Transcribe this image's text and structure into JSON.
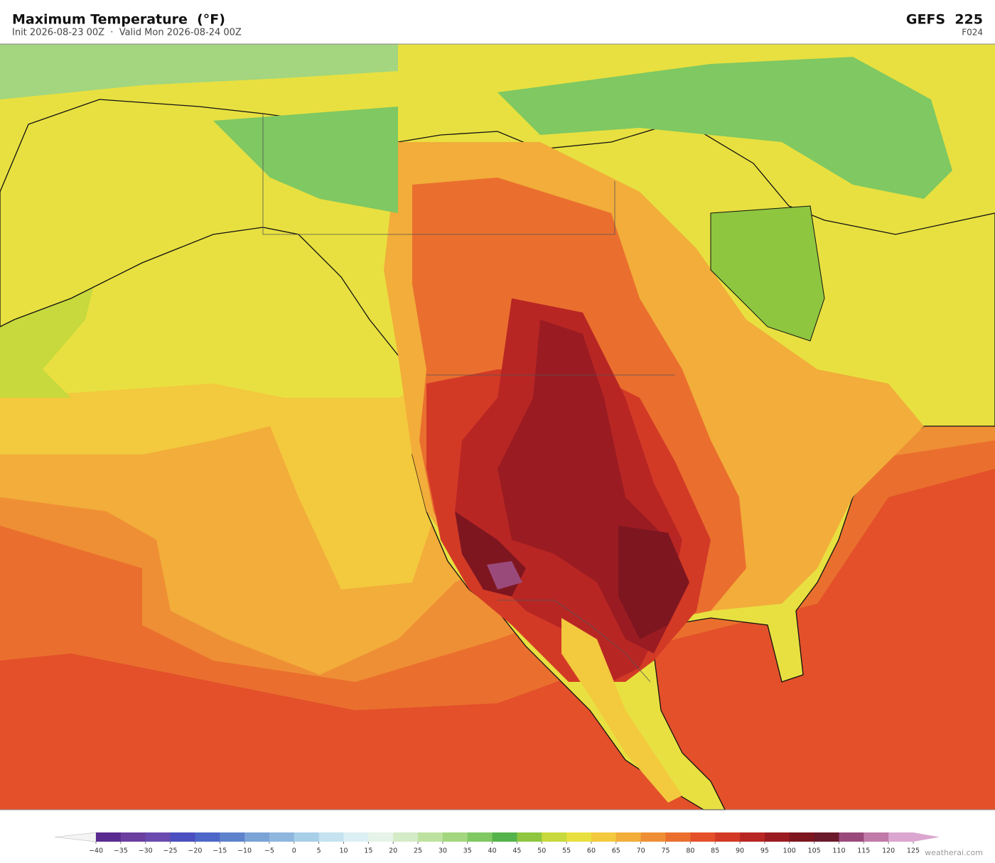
{
  "header": {
    "title": "Maximum Temperature  (°F)",
    "subtitle": "Init 2026-08-23 00Z  ·  Valid Mon 2026-08-24 00Z",
    "model": "GEFS  225",
    "forecast": "F024"
  },
  "colorbar": {
    "ticks": [
      {
        "value": -40,
        "label": "−40"
      },
      {
        "value": -35,
        "label": "−35"
      },
      {
        "value": -30,
        "label": "−30"
      },
      {
        "value": -25,
        "label": "−25"
      },
      {
        "value": -20,
        "label": "−20"
      },
      {
        "value": -15,
        "label": "−15"
      },
      {
        "value": -10,
        "label": "−10"
      },
      {
        "value": -5,
        "label": "−5"
      },
      0,
      5,
      10,
      15,
      20,
      25,
      30,
      35,
      40,
      45,
      50,
      55,
      60,
      65,
      70,
      75,
      80,
      85,
      90,
      95,
      100,
      105,
      110,
      115,
      120,
      125
    ],
    "colors": [
      "#5b2a91",
      "#6b3fa0",
      "#6a4aae",
      "#4b4fbf",
      "#4f66c9",
      "#5f82cc",
      "#7aa3d6",
      "#8fb6de",
      "#a7cfe8",
      "#c4e2ef",
      "#dceff4",
      "#e6f3e8",
      "#d3ebc6",
      "#bde2a0",
      "#a3d67e",
      "#7fc862",
      "#55b34b",
      "#8ec63f",
      "#c7d93c",
      "#e8e040",
      "#f3c93e",
      "#f2ad3a",
      "#ef8f35",
      "#ea6f2e",
      "#e3502a",
      "#d33a26",
      "#b82624",
      "#9a1c22",
      "#7e1620",
      "#6a1a2a",
      "#9a4a7a",
      "#c07aa8",
      "#dba6cf"
    ],
    "under_color": "#f4f4f4",
    "over_color": "#dba6cf"
  },
  "watermark": "weatherai.com"
}
